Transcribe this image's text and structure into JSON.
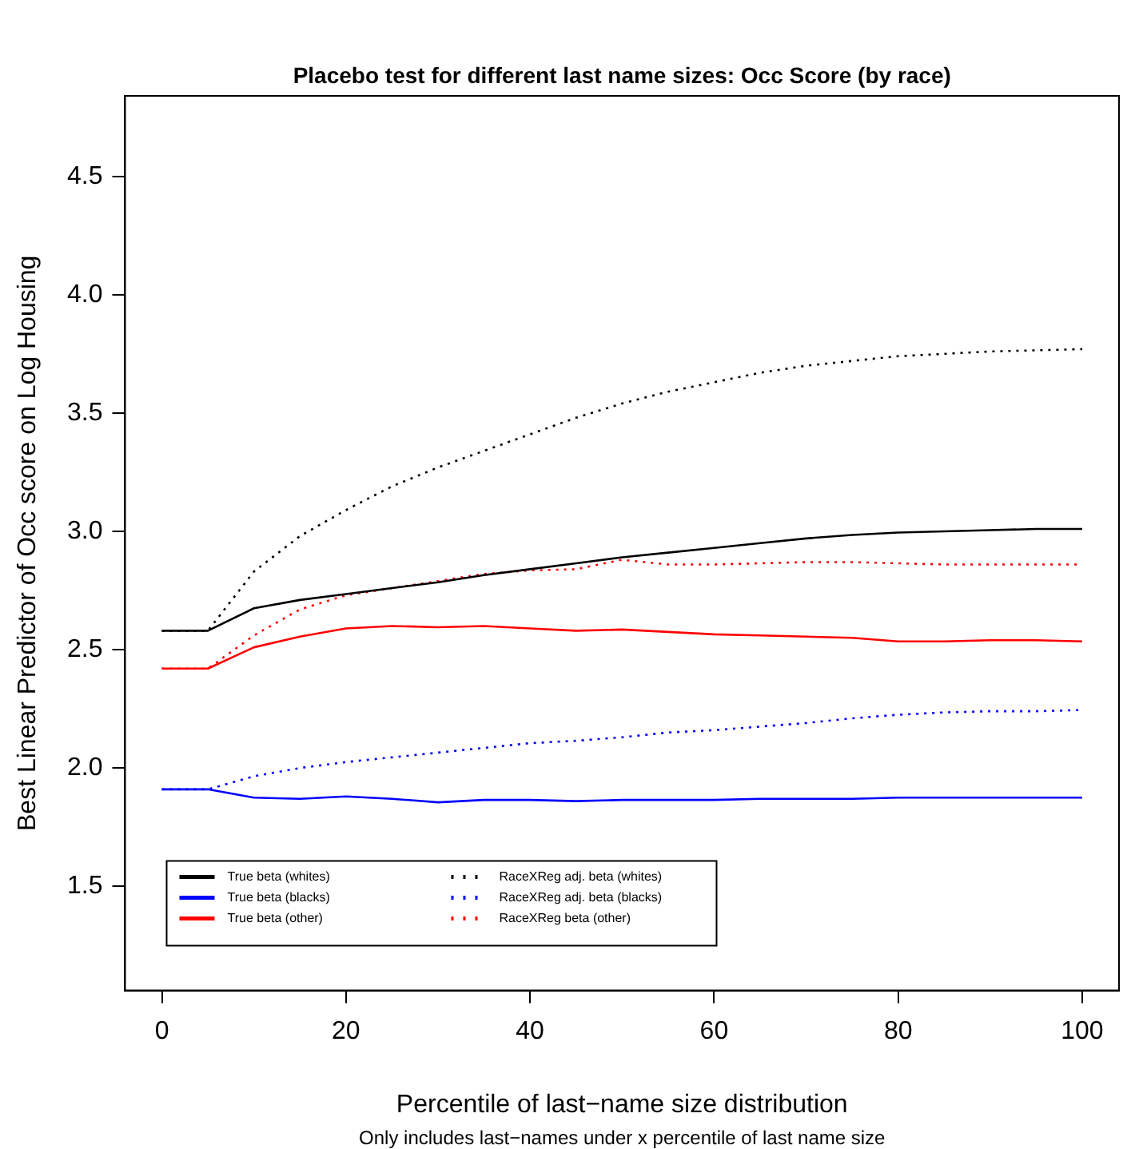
{
  "chart_data": {
    "type": "line",
    "title": "Placebo test for different last name sizes: Occ Score (by race)",
    "xlabel": "Percentile of last−name size distribution",
    "ylabel": "Best Linear Predictor of Occ score on Log Housing",
    "annotations": [
      "Only includes last−names under x percentile of last name size"
    ],
    "x": [
      0,
      5,
      10,
      15,
      20,
      25,
      30,
      35,
      40,
      45,
      50,
      55,
      60,
      65,
      70,
      75,
      80,
      85,
      90,
      95,
      100
    ],
    "series": [
      {
        "name": "True beta (whites)",
        "color": "#000000",
        "line_style": "solid",
        "values": [
          2.58,
          2.58,
          2.675,
          2.71,
          2.735,
          2.76,
          2.785,
          2.815,
          2.84,
          2.865,
          2.89,
          2.91,
          2.93,
          2.95,
          2.97,
          2.985,
          2.995,
          3.0,
          3.005,
          3.01,
          3.01
        ]
      },
      {
        "name": "True beta (blacks)",
        "color": "#0000ff",
        "line_style": "solid",
        "values": [
          1.91,
          1.91,
          1.875,
          1.87,
          1.88,
          1.87,
          1.855,
          1.865,
          1.865,
          1.86,
          1.865,
          1.865,
          1.865,
          1.87,
          1.87,
          1.87,
          1.875,
          1.875,
          1.875,
          1.875,
          1.875
        ]
      },
      {
        "name": "True beta (other)",
        "color": "#ff0000",
        "line_style": "solid",
        "values": [
          2.42,
          2.42,
          2.51,
          2.555,
          2.59,
          2.6,
          2.595,
          2.6,
          2.59,
          2.58,
          2.585,
          2.575,
          2.565,
          2.56,
          2.555,
          2.55,
          2.535,
          2.535,
          2.54,
          2.54,
          2.535
        ]
      },
      {
        "name": "RaceXReg adj. beta (whites)",
        "color": "#000000",
        "line_style": "dotted",
        "values": [
          2.58,
          2.58,
          2.83,
          2.98,
          3.09,
          3.19,
          3.27,
          3.34,
          3.41,
          3.48,
          3.54,
          3.59,
          3.63,
          3.67,
          3.7,
          3.72,
          3.74,
          3.75,
          3.76,
          3.765,
          3.77
        ]
      },
      {
        "name": "RaceXReg adj. beta (blacks)",
        "color": "#0000ff",
        "line_style": "dotted",
        "values": [
          1.91,
          1.91,
          1.965,
          2.0,
          2.025,
          2.045,
          2.065,
          2.085,
          2.105,
          2.115,
          2.13,
          2.15,
          2.16,
          2.175,
          2.19,
          2.21,
          2.225,
          2.235,
          2.24,
          2.24,
          2.245
        ]
      },
      {
        "name": "RaceXReg beta (other)",
        "color": "#ff0000",
        "line_style": "dotted",
        "values": [
          2.42,
          2.42,
          2.56,
          2.67,
          2.73,
          2.76,
          2.79,
          2.82,
          2.835,
          2.84,
          2.88,
          2.86,
          2.86,
          2.865,
          2.87,
          2.87,
          2.865,
          2.86,
          2.86,
          2.86,
          2.86
        ]
      }
    ],
    "xlim": [
      -4,
      104
    ],
    "xticks": [
      0,
      20,
      40,
      60,
      80,
      100
    ],
    "ylim": [
      1.06,
      4.84
    ],
    "yticks": [
      1.5,
      {
        "value": 2,
        "label": "2.0"
      },
      2.5,
      {
        "value": 3,
        "label": "3.0"
      },
      3.5,
      {
        "value": 4,
        "label": "4.0"
      },
      4.5
    ],
    "grid": false,
    "legend": "bottom left",
    "marker": "none"
  }
}
